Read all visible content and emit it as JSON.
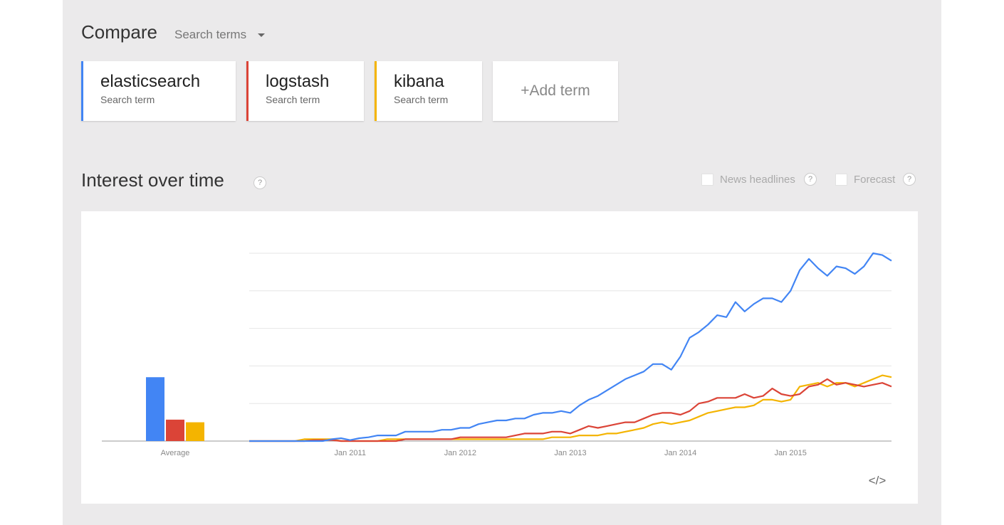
{
  "header": {
    "title": "Compare",
    "dropdown": "Search terms"
  },
  "term_subtitle": "Search term",
  "add_term": "+Add term",
  "section_title": "Interest over time",
  "help_icon": "?",
  "options": [
    "News headlines",
    "Forecast"
  ],
  "embed_icon": "</>",
  "chart_data": {
    "type": "line",
    "categories": [
      null,
      null,
      null,
      null,
      null,
      null,
      null,
      null,
      null,
      null,
      null,
      "Jan 2011",
      null,
      null,
      null,
      null,
      null,
      null,
      null,
      null,
      null,
      null,
      null,
      "Jan 2012",
      null,
      null,
      null,
      null,
      null,
      null,
      null,
      null,
      null,
      null,
      null,
      "Jan 2013",
      null,
      null,
      null,
      null,
      null,
      null,
      null,
      null,
      null,
      null,
      null,
      "Jan 2014",
      null,
      null,
      null,
      null,
      null,
      null,
      null,
      null,
      null,
      null,
      null,
      "Jan 2015",
      null,
      null,
      null,
      null,
      null,
      null,
      null,
      null,
      null,
      null,
      null
    ],
    "series": [
      {
        "name": "elasticsearch",
        "color": "#4285f4",
        "values": [
          0,
          0,
          0,
          0,
          0,
          0,
          0,
          0,
          0,
          1,
          1.5,
          0.5,
          1.5,
          2,
          3,
          3,
          3,
          5,
          5,
          5,
          5,
          6,
          6,
          7,
          7,
          9,
          10,
          11,
          11,
          12,
          12,
          14,
          15,
          15,
          16,
          15,
          19,
          22,
          24,
          27,
          30,
          33,
          35,
          37,
          41,
          41,
          38,
          45,
          55,
          58,
          62,
          67,
          66,
          74,
          69,
          73,
          76,
          76,
          74,
          80,
          91,
          97,
          92,
          88,
          93,
          92,
          89,
          93,
          100,
          99,
          96
        ]
      },
      {
        "name": "logstash",
        "color": "#db4437",
        "values": [
          0,
          0,
          0,
          0,
          0,
          0,
          0,
          0.5,
          0.5,
          0.5,
          0,
          0,
          0,
          0,
          0,
          0,
          0,
          1,
          1,
          1,
          1,
          1,
          1,
          2,
          2,
          2,
          2,
          2,
          2,
          3,
          4,
          4,
          4,
          5,
          5,
          4,
          6,
          8,
          7,
          8,
          9,
          10,
          10,
          12,
          14,
          15,
          15,
          14,
          16,
          20,
          21,
          23,
          23,
          23,
          25,
          23,
          24,
          28,
          25,
          24,
          25,
          29,
          30,
          33,
          30,
          31,
          30,
          29,
          30,
          31,
          29
        ]
      },
      {
        "name": "kibana",
        "color": "#f4b400",
        "values": [
          0,
          0,
          0,
          0,
          0,
          0,
          1,
          1,
          1,
          1,
          0,
          0,
          0,
          0,
          0,
          1,
          1,
          1,
          1,
          1,
          1,
          1,
          1,
          1,
          1,
          1,
          1,
          1,
          1,
          1,
          1,
          1,
          1,
          2,
          2,
          2,
          3,
          3,
          3,
          4,
          4,
          5,
          6,
          7,
          9,
          10,
          9,
          10,
          11,
          13,
          15,
          16,
          17,
          18,
          18,
          19,
          22,
          22,
          21,
          22,
          29,
          30,
          31,
          29,
          31,
          31,
          29,
          31,
          33,
          35,
          34
        ]
      }
    ],
    "average": {
      "label": "Average",
      "values": [
        34,
        11.4,
        10
      ]
    },
    "ylim": [
      0,
      100
    ],
    "yticks": [
      0,
      20,
      40,
      60,
      80,
      100
    ],
    "grid": true
  }
}
